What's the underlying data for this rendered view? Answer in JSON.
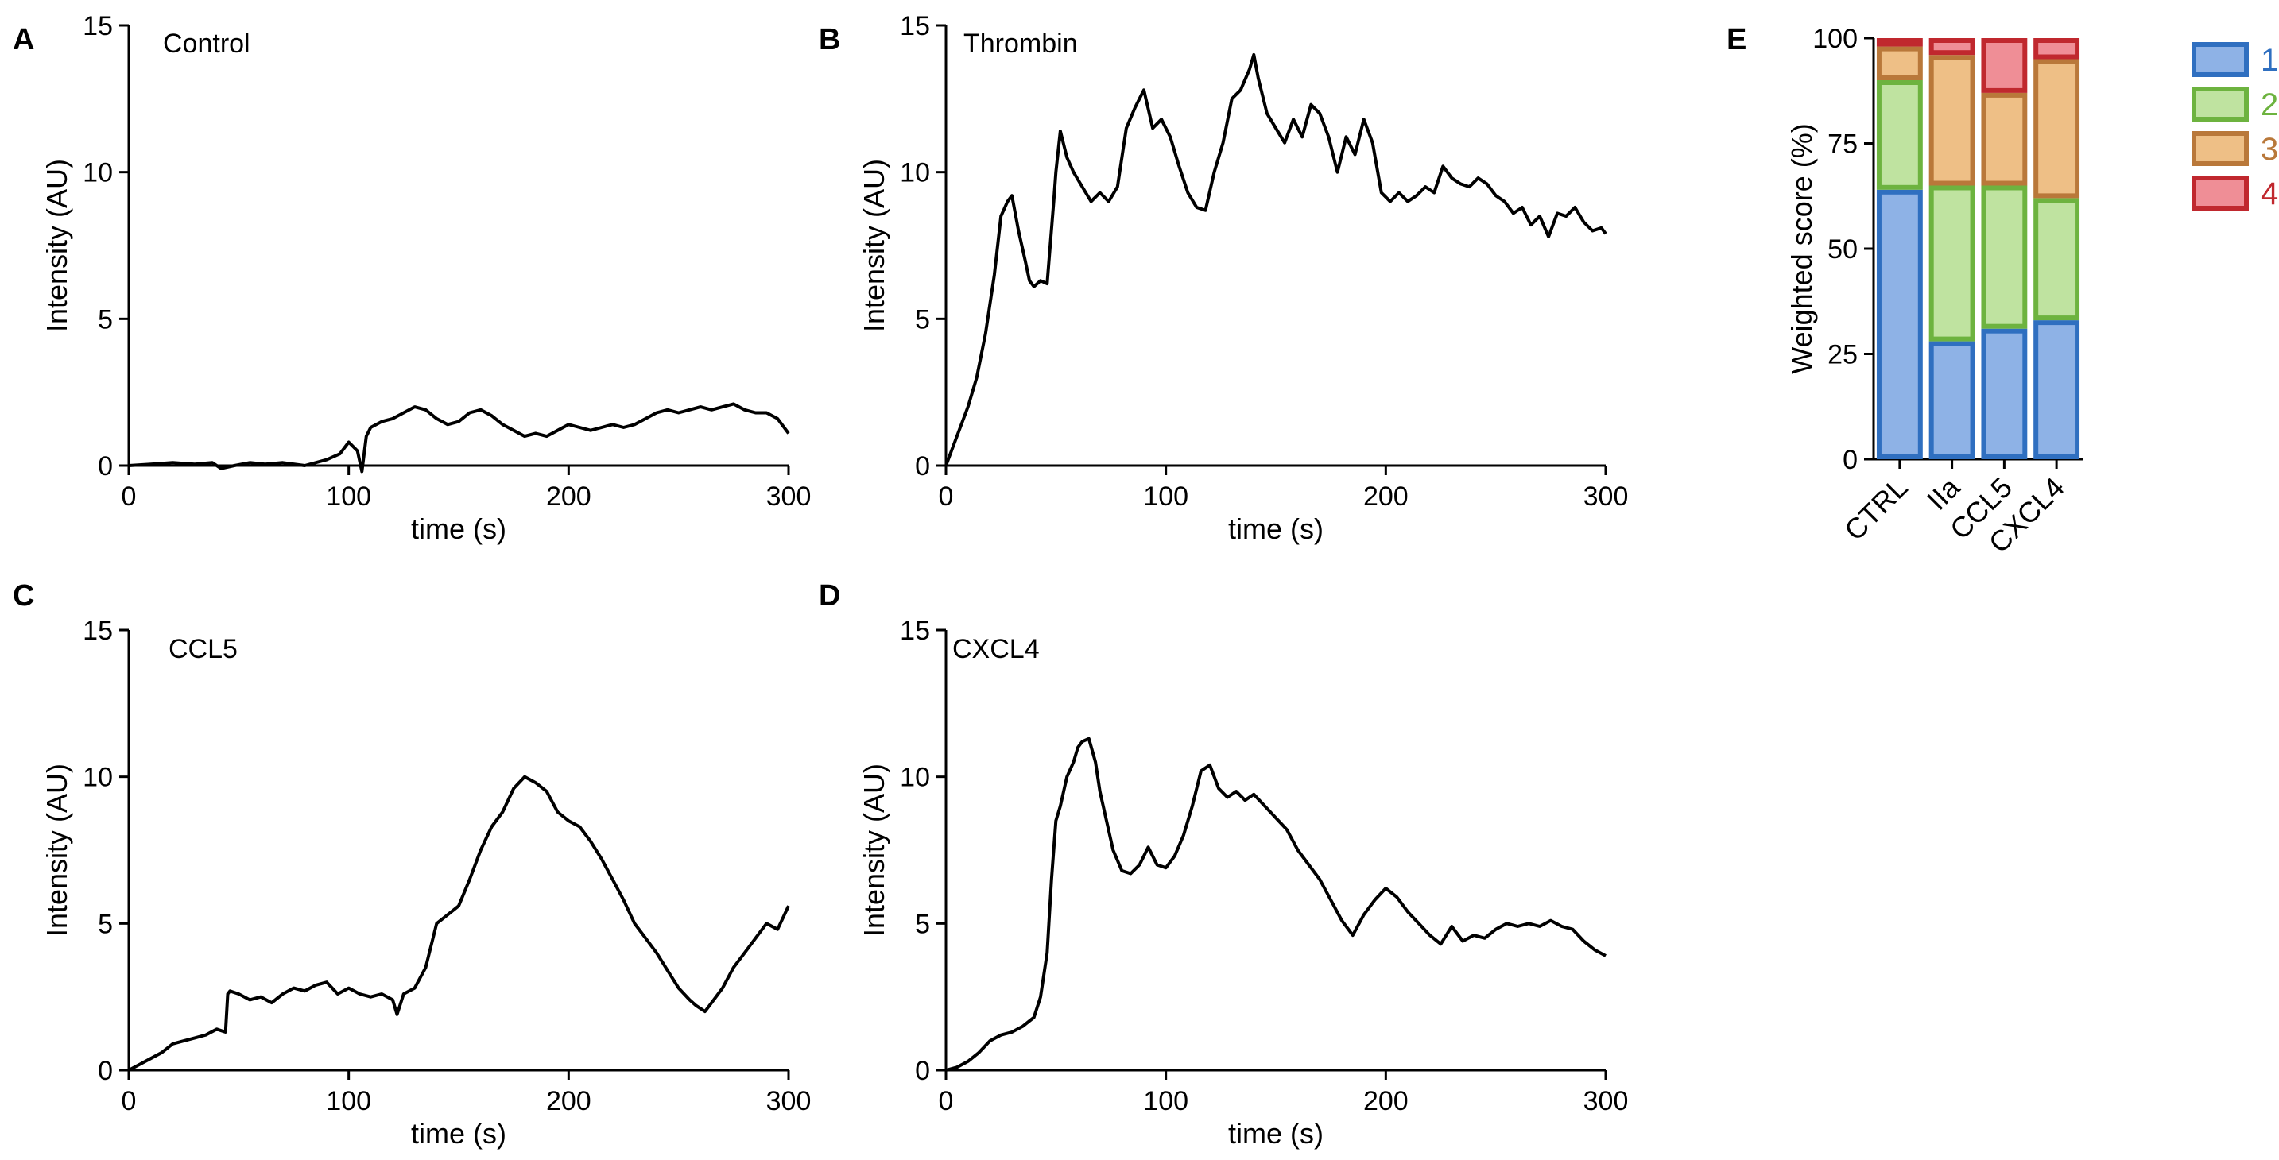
{
  "figure": {
    "panels": {
      "A": {
        "letter": "A",
        "title": "Control"
      },
      "B": {
        "letter": "B",
        "title": "Thrombin"
      },
      "C": {
        "letter": "C",
        "title": "CCL5"
      },
      "D": {
        "letter": "D",
        "title": "CXCL4"
      },
      "E": {
        "letter": "E"
      }
    }
  },
  "chart_data": [
    {
      "id": "A",
      "type": "line",
      "title": "Control",
      "xlabel": "time (s)",
      "ylabel": "Intensity (AU)",
      "xlim": [
        0,
        300
      ],
      "ylim": [
        0,
        15
      ],
      "xticks": [
        0,
        100,
        200,
        300
      ],
      "yticks": [
        0,
        5,
        10,
        15
      ],
      "series": [
        {
          "name": "Control",
          "x": [
            0,
            10,
            20,
            30,
            38,
            42,
            48,
            55,
            62,
            70,
            80,
            90,
            96,
            100,
            104,
            106,
            108,
            110,
            115,
            120,
            125,
            130,
            135,
            140,
            145,
            150,
            155,
            160,
            165,
            170,
            175,
            180,
            185,
            190,
            195,
            200,
            205,
            210,
            215,
            220,
            225,
            230,
            235,
            240,
            245,
            250,
            255,
            260,
            265,
            270,
            275,
            280,
            285,
            290,
            295,
            300
          ],
          "y": [
            0,
            0.05,
            0.1,
            0.05,
            0.1,
            -0.1,
            0,
            0.1,
            0.05,
            0.1,
            0,
            0.2,
            0.4,
            0.8,
            0.5,
            -0.2,
            1.0,
            1.3,
            1.5,
            1.6,
            1.8,
            2.0,
            1.9,
            1.6,
            1.4,
            1.5,
            1.8,
            1.9,
            1.7,
            1.4,
            1.2,
            1.0,
            1.1,
            1.0,
            1.2,
            1.4,
            1.3,
            1.2,
            1.3,
            1.4,
            1.3,
            1.4,
            1.6,
            1.8,
            1.9,
            1.8,
            1.9,
            2.0,
            1.9,
            2.0,
            2.1,
            1.9,
            1.8,
            1.8,
            1.6,
            1.1
          ]
        }
      ]
    },
    {
      "id": "B",
      "type": "line",
      "title": "Thrombin",
      "xlabel": "time (s)",
      "ylabel": "Intensity (AU)",
      "xlim": [
        0,
        300
      ],
      "ylim": [
        0,
        15
      ],
      "xticks": [
        0,
        100,
        200,
        300
      ],
      "yticks": [
        0,
        5,
        10,
        15
      ],
      "series": [
        {
          "name": "Thrombin",
          "x": [
            0,
            3,
            6,
            10,
            14,
            18,
            22,
            25,
            28,
            30,
            33,
            36,
            38,
            40,
            43,
            46,
            49,
            50,
            52,
            55,
            58,
            62,
            66,
            70,
            74,
            78,
            82,
            86,
            90,
            94,
            98,
            102,
            106,
            110,
            114,
            118,
            122,
            126,
            130,
            134,
            138,
            140,
            142,
            146,
            150,
            154,
            158,
            162,
            166,
            170,
            174,
            178,
            182,
            186,
            190,
            194,
            198,
            202,
            206,
            210,
            214,
            218,
            222,
            226,
            230,
            234,
            238,
            242,
            246,
            250,
            254,
            258,
            262,
            266,
            270,
            274,
            278,
            282,
            286,
            290,
            294,
            298,
            300
          ],
          "y": [
            0,
            0.6,
            1.2,
            2.0,
            3.0,
            4.5,
            6.5,
            8.5,
            9.0,
            9.2,
            8.0,
            7.0,
            6.3,
            6.1,
            6.3,
            6.2,
            9.0,
            10.0,
            11.4,
            10.5,
            10.0,
            9.5,
            9.0,
            9.3,
            9.0,
            9.5,
            11.5,
            12.2,
            12.8,
            11.5,
            11.8,
            11.2,
            10.2,
            9.3,
            8.8,
            8.7,
            10.0,
            11.0,
            12.5,
            12.8,
            13.5,
            14.0,
            13.2,
            12.0,
            11.5,
            11.0,
            11.8,
            11.2,
            12.3,
            12.0,
            11.2,
            10.0,
            11.2,
            10.6,
            11.8,
            11.0,
            9.3,
            9.0,
            9.3,
            9.0,
            9.2,
            9.5,
            9.3,
            10.2,
            9.8,
            9.6,
            9.5,
            9.8,
            9.6,
            9.2,
            9.0,
            8.6,
            8.8,
            8.2,
            8.5,
            7.8,
            8.6,
            8.5,
            8.8,
            8.3,
            8.0,
            8.1,
            7.9
          ]
        }
      ]
    },
    {
      "id": "C",
      "type": "line",
      "title": "CCL5",
      "xlabel": "time (s)",
      "ylabel": "Intensity (AU)",
      "xlim": [
        0,
        300
      ],
      "ylim": [
        0,
        15
      ],
      "xticks": [
        0,
        100,
        200,
        300
      ],
      "yticks": [
        0,
        5,
        10,
        15
      ],
      "series": [
        {
          "name": "CCL5",
          "x": [
            0,
            5,
            10,
            15,
            20,
            25,
            30,
            35,
            40,
            44,
            45,
            46,
            50,
            55,
            60,
            65,
            70,
            75,
            80,
            85,
            90,
            95,
            100,
            105,
            110,
            115,
            120,
            122,
            125,
            130,
            135,
            140,
            145,
            150,
            155,
            160,
            165,
            170,
            175,
            180,
            185,
            190,
            195,
            200,
            205,
            210,
            215,
            220,
            225,
            230,
            235,
            240,
            245,
            250,
            255,
            258,
            262,
            266,
            270,
            275,
            280,
            285,
            290,
            295,
            300
          ],
          "y": [
            0,
            0.2,
            0.4,
            0.6,
            0.9,
            1.0,
            1.1,
            1.2,
            1.4,
            1.3,
            2.6,
            2.7,
            2.6,
            2.4,
            2.5,
            2.3,
            2.6,
            2.8,
            2.7,
            2.9,
            3.0,
            2.6,
            2.8,
            2.6,
            2.5,
            2.6,
            2.4,
            1.9,
            2.6,
            2.8,
            3.5,
            5.0,
            5.3,
            5.6,
            6.5,
            7.5,
            8.3,
            8.8,
            9.6,
            10.0,
            9.8,
            9.5,
            8.8,
            8.5,
            8.3,
            7.8,
            7.2,
            6.5,
            5.8,
            5.0,
            4.5,
            4.0,
            3.4,
            2.8,
            2.4,
            2.2,
            2.0,
            2.4,
            2.8,
            3.5,
            4.0,
            4.5,
            5.0,
            4.8,
            5.6
          ]
        }
      ]
    },
    {
      "id": "D",
      "type": "line",
      "title": "CXCL4",
      "xlabel": "time (s)",
      "ylabel": "Intensity (AU)",
      "xlim": [
        0,
        300
      ],
      "ylim": [
        0,
        15
      ],
      "xticks": [
        0,
        100,
        200,
        300
      ],
      "yticks": [
        0,
        5,
        10,
        15
      ],
      "series": [
        {
          "name": "CXCL4",
          "x": [
            0,
            5,
            10,
            15,
            20,
            25,
            30,
            35,
            40,
            43,
            46,
            48,
            50,
            52,
            55,
            58,
            60,
            62,
            65,
            68,
            70,
            73,
            76,
            80,
            84,
            88,
            92,
            96,
            100,
            104,
            108,
            112,
            116,
            120,
            124,
            128,
            132,
            136,
            140,
            145,
            150,
            155,
            160,
            165,
            170,
            175,
            180,
            185,
            190,
            195,
            200,
            205,
            210,
            215,
            220,
            225,
            230,
            235,
            240,
            245,
            250,
            255,
            260,
            265,
            270,
            275,
            280,
            285,
            290,
            295,
            300
          ],
          "y": [
            0,
            0.1,
            0.3,
            0.6,
            1.0,
            1.2,
            1.3,
            1.5,
            1.8,
            2.5,
            4.0,
            6.5,
            8.5,
            9.0,
            10.0,
            10.5,
            11.0,
            11.2,
            11.3,
            10.5,
            9.5,
            8.5,
            7.5,
            6.8,
            6.7,
            7.0,
            7.6,
            7.0,
            6.9,
            7.3,
            8.0,
            9.0,
            10.2,
            10.4,
            9.6,
            9.3,
            9.5,
            9.2,
            9.4,
            9.0,
            8.6,
            8.2,
            7.5,
            7.0,
            6.5,
            5.8,
            5.1,
            4.6,
            5.3,
            5.8,
            6.2,
            5.9,
            5.4,
            5.0,
            4.6,
            4.3,
            4.9,
            4.4,
            4.6,
            4.5,
            4.8,
            5.0,
            4.9,
            5.0,
            4.9,
            5.1,
            4.9,
            4.8,
            4.4,
            4.1,
            3.9
          ]
        }
      ]
    },
    {
      "id": "E",
      "type": "bar",
      "stacked": true,
      "categories": [
        "CTRL",
        "IIa",
        "CCL5",
        "CXCL4"
      ],
      "ylabel": "Weighted score (%)",
      "ylim": [
        0,
        100
      ],
      "yticks": [
        0,
        25,
        50,
        75,
        100
      ],
      "legend_position": "right",
      "series": [
        {
          "name": "1",
          "values": [
            64,
            28,
            31,
            33
          ],
          "fill": "#8EB2E6",
          "edge": "#2F6FC0"
        },
        {
          "name": "2",
          "values": [
            26,
            37,
            34,
            29
          ],
          "fill": "#BFE3A0",
          "edge": "#6DB33F"
        },
        {
          "name": "3",
          "values": [
            8,
            31,
            22,
            33
          ],
          "fill": "#EEBF86",
          "edge": "#B9783A"
        },
        {
          "name": "4",
          "values": [
            2,
            4,
            13,
            5
          ],
          "fill": "#EF8E96",
          "edge": "#C0282E"
        }
      ],
      "legend_text_colors": [
        "#2F6FC0",
        "#6DB33F",
        "#B9783A",
        "#C0282E"
      ]
    }
  ]
}
